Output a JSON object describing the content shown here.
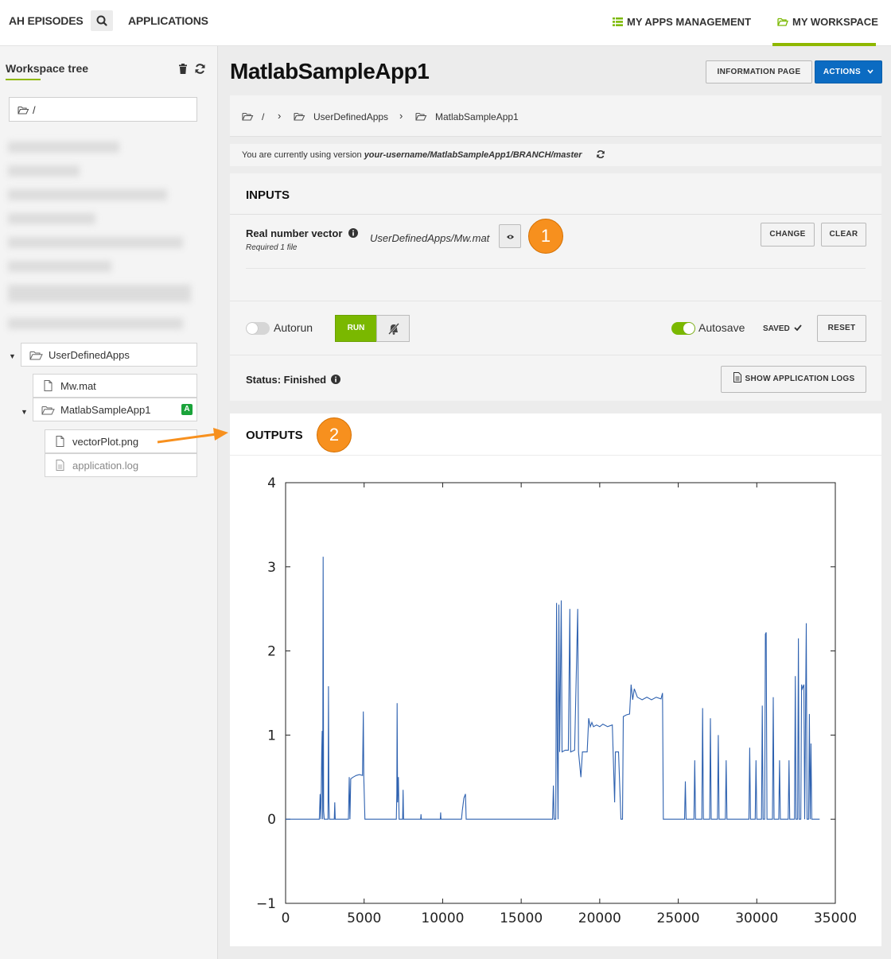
{
  "nav": {
    "episodes": "AH EPISODES",
    "applications": "APPLICATIONS",
    "apps_management": "MY APPS MANAGEMENT",
    "workspace": "MY WORKSPACE",
    "accent": "#8fb800"
  },
  "sidebar": {
    "title": "Workspace tree",
    "root_path": "/",
    "tree": {
      "user_defined_apps": "UserDefinedApps",
      "mw_mat": "Mw.mat",
      "matlab_app": "MatlabSampleApp1",
      "app_badge": "A",
      "vector_plot": "vectorPlot.png",
      "app_log": "application.log"
    }
  },
  "main": {
    "title": "MatlabSampleApp1",
    "info_button": "INFORMATION PAGE",
    "actions_button": "ACTIONS",
    "breadcrumb": {
      "root": "/",
      "folder": "UserDefinedApps",
      "current": "MatlabSampleApp1"
    },
    "version": {
      "prefix": "You are currently using version",
      "value": "your-username/MatlabSampleApp1/BRANCH/master"
    },
    "inputs": {
      "heading": "INPUTS",
      "field_label": "Real number vector",
      "field_sub": "Required 1 file",
      "field_value": "UserDefinedApps/Mw.mat",
      "change": "CHANGE",
      "clear": "CLEAR",
      "callout": "1"
    },
    "controls": {
      "autorun": "Autorun",
      "run": "RUN",
      "autosave": "Autosave",
      "saved": "SAVED",
      "reset": "RESET"
    },
    "status": {
      "label": "Status: Finished",
      "logs_button": "SHOW APPLICATION LOGS"
    },
    "outputs": {
      "heading": "OUTPUTS",
      "callout": "2"
    }
  },
  "chart_data": {
    "type": "line",
    "title": "",
    "xlabel": "",
    "ylabel": "",
    "xlim": [
      0,
      35000
    ],
    "ylim": [
      -1,
      4
    ],
    "xticks": [
      "0",
      "5000",
      "10000",
      "15000",
      "20000",
      "25000",
      "30000",
      "35000"
    ],
    "yticks": [
      "−1",
      "0",
      "1",
      "2",
      "3",
      "4"
    ],
    "grid": false,
    "series": [
      {
        "color": "#2f62b0",
        "points": [
          [
            0,
            0
          ],
          [
            2150,
            0
          ],
          [
            2200,
            0.3
          ],
          [
            2250,
            0
          ],
          [
            2300,
            0.8
          ],
          [
            2330,
            1.05
          ],
          [
            2360,
            0
          ],
          [
            2390,
            3.12
          ],
          [
            2420,
            0.1
          ],
          [
            2460,
            0
          ],
          [
            2700,
            0
          ],
          [
            2730,
            1.58
          ],
          [
            2760,
            0.2
          ],
          [
            2790,
            0
          ],
          [
            3100,
            0
          ],
          [
            3130,
            0.2
          ],
          [
            3160,
            0
          ],
          [
            4000,
            0
          ],
          [
            4050,
            0.5
          ],
          [
            4100,
            0
          ],
          [
            4150,
            0.48
          ],
          [
            4300,
            0.5
          ],
          [
            4500,
            0.52
          ],
          [
            4700,
            0.53
          ],
          [
            4900,
            0.52
          ],
          [
            4950,
            1.28
          ],
          [
            4980,
            0.5
          ],
          [
            5050,
            0
          ],
          [
            7050,
            0
          ],
          [
            7080,
            0.3
          ],
          [
            7100,
            1.38
          ],
          [
            7130,
            0.2
          ],
          [
            7180,
            0.5
          ],
          [
            7230,
            0
          ],
          [
            7450,
            0
          ],
          [
            7480,
            0.35
          ],
          [
            7510,
            0
          ],
          [
            8600,
            0
          ],
          [
            8620,
            0.06
          ],
          [
            8640,
            0
          ],
          [
            9850,
            0
          ],
          [
            9870,
            0.08
          ],
          [
            9890,
            0
          ],
          [
            11200,
            0
          ],
          [
            11250,
            0.1
          ],
          [
            11350,
            0.25
          ],
          [
            11450,
            0.3
          ],
          [
            11500,
            0
          ],
          [
            17000,
            0
          ],
          [
            17050,
            0.4
          ],
          [
            17100,
            0
          ],
          [
            17200,
            0
          ],
          [
            17250,
            2.57
          ],
          [
            17300,
            0.8
          ],
          [
            17350,
            0
          ],
          [
            17400,
            2.55
          ],
          [
            17450,
            0.8
          ],
          [
            17550,
            2.6
          ],
          [
            17600,
            0.8
          ],
          [
            17800,
            0.82
          ],
          [
            18000,
            0.82
          ],
          [
            18100,
            2.5
          ],
          [
            18150,
            0.8
          ],
          [
            18400,
            0.82
          ],
          [
            18600,
            2.5
          ],
          [
            18650,
            0.8
          ],
          [
            18800,
            0.5
          ],
          [
            18900,
            0.8
          ],
          [
            19200,
            0.8
          ],
          [
            19300,
            1.2
          ],
          [
            19400,
            1.1
          ],
          [
            19500,
            1.15
          ],
          [
            19600,
            1.1
          ],
          [
            19800,
            1.12
          ],
          [
            20000,
            1.1
          ],
          [
            20200,
            1.13
          ],
          [
            20500,
            1.1
          ],
          [
            20800,
            1.12
          ],
          [
            20950,
            0.2
          ],
          [
            21000,
            0.8
          ],
          [
            21200,
            0.8
          ],
          [
            21350,
            0
          ],
          [
            21450,
            0
          ],
          [
            21500,
            1.22
          ],
          [
            21700,
            1.24
          ],
          [
            21900,
            1.25
          ],
          [
            22000,
            1.6
          ],
          [
            22100,
            1.42
          ],
          [
            22200,
            1.55
          ],
          [
            22400,
            1.45
          ],
          [
            22700,
            1.42
          ],
          [
            23000,
            1.45
          ],
          [
            23300,
            1.42
          ],
          [
            23600,
            1.45
          ],
          [
            23900,
            1.43
          ],
          [
            24000,
            1.5
          ],
          [
            24050,
            0
          ],
          [
            25400,
            0
          ],
          [
            25450,
            0.45
          ],
          [
            25500,
            0
          ],
          [
            26000,
            0
          ],
          [
            26050,
            0.7
          ],
          [
            26100,
            0
          ],
          [
            26500,
            0
          ],
          [
            26550,
            1.32
          ],
          [
            26600,
            0
          ],
          [
            27000,
            0
          ],
          [
            27050,
            1.2
          ],
          [
            27100,
            0
          ],
          [
            27500,
            0
          ],
          [
            27550,
            1.0
          ],
          [
            27600,
            0
          ],
          [
            28000,
            0
          ],
          [
            28050,
            0.7
          ],
          [
            28100,
            0
          ],
          [
            29500,
            0
          ],
          [
            29550,
            0.85
          ],
          [
            29600,
            0
          ],
          [
            29900,
            0
          ],
          [
            29950,
            0.7
          ],
          [
            30000,
            0
          ],
          [
            30300,
            0
          ],
          [
            30350,
            1.35
          ],
          [
            30400,
            0
          ],
          [
            30500,
            0
          ],
          [
            30550,
            2.2
          ],
          [
            30600,
            2.22
          ],
          [
            30650,
            0
          ],
          [
            31000,
            0
          ],
          [
            31050,
            1.45
          ],
          [
            31100,
            0
          ],
          [
            31400,
            0
          ],
          [
            31450,
            0.7
          ],
          [
            31500,
            0
          ],
          [
            32000,
            0
          ],
          [
            32050,
            0.7
          ],
          [
            32100,
            0
          ],
          [
            32400,
            0
          ],
          [
            32450,
            1.7
          ],
          [
            32500,
            0
          ],
          [
            32600,
            0
          ],
          [
            32650,
            2.15
          ],
          [
            32700,
            0
          ],
          [
            32800,
            0
          ],
          [
            32850,
            1.6
          ],
          [
            32900,
            1.55
          ],
          [
            33000,
            1.6
          ],
          [
            33050,
            0
          ],
          [
            33150,
            2.33
          ],
          [
            33200,
            0
          ],
          [
            33300,
            0
          ],
          [
            33350,
            1.25
          ],
          [
            33400,
            0
          ],
          [
            33450,
            0.9
          ],
          [
            33500,
            0
          ],
          [
            34000,
            0
          ]
        ]
      }
    ]
  }
}
